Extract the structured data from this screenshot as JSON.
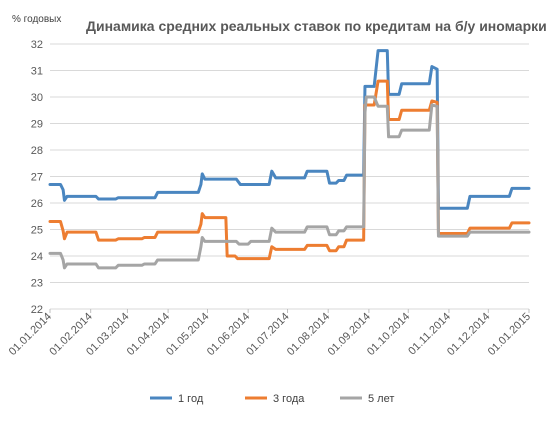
{
  "chart_data": {
    "type": "line",
    "title": "Динамика средних реальных ставок по кредитам на б/у иномарки",
    "ylabel": "% годовых",
    "xlabel": "",
    "ylim": [
      22,
      32
    ],
    "yticks": [
      22,
      23,
      24,
      25,
      26,
      27,
      28,
      29,
      30,
      31,
      32
    ],
    "xlim": [
      "01.01.2014",
      "01.01.2015"
    ],
    "xticks": [
      "01.01.2014",
      "01.02.2014",
      "01.03.2014",
      "01.04.2014",
      "01.05.2014",
      "01.06.2014",
      "01.07.2014",
      "01.08.2014",
      "01.09.2014",
      "01.10.2014",
      "01.11.2014",
      "01.12.2014",
      "01.01.2015"
    ],
    "grid": true,
    "legend": "bottom",
    "series": [
      {
        "name": "1 год",
        "color": "#4a86c0",
        "points": [
          [
            "01.01.2014",
            26.7
          ],
          [
            "09.01.2014",
            26.7
          ],
          [
            "11.01.2014",
            26.5
          ],
          [
            "12.01.2014",
            26.1
          ],
          [
            "14.01.2014",
            26.25
          ],
          [
            "05.02.2014",
            26.25
          ],
          [
            "07.02.2014",
            26.15
          ],
          [
            "20.02.2014",
            26.15
          ],
          [
            "22.02.2014",
            26.2
          ],
          [
            "22.03.2014",
            26.2
          ],
          [
            "24.03.2014",
            26.4
          ],
          [
            "24.04.2014",
            26.4
          ],
          [
            "26.04.2014",
            26.7
          ],
          [
            "27.04.2014",
            27.1
          ],
          [
            "29.04.2014",
            26.9
          ],
          [
            "23.05.2014",
            26.9
          ],
          [
            "26.05.2014",
            26.7
          ],
          [
            "06.06.2014",
            26.7
          ],
          [
            "10.06.2014",
            26.7
          ],
          [
            "17.06.2014",
            26.7
          ],
          [
            "19.06.2014",
            27.2
          ],
          [
            "22.06.2014",
            26.95
          ],
          [
            "14.07.2014",
            26.95
          ],
          [
            "16.07.2014",
            27.2
          ],
          [
            "31.07.2014",
            27.2
          ],
          [
            "02.08.2014",
            26.75
          ],
          [
            "07.08.2014",
            26.75
          ],
          [
            "09.08.2014",
            26.85
          ],
          [
            "13.08.2014",
            26.85
          ],
          [
            "15.08.2014",
            27.05
          ],
          [
            "28.08.2014",
            27.05
          ],
          [
            "29.08.2014",
            30.4
          ],
          [
            "05.09.2014",
            30.4
          ],
          [
            "08.09.2014",
            31.75
          ],
          [
            "15.09.2014",
            31.75
          ],
          [
            "16.09.2014",
            30.1
          ],
          [
            "24.09.2014",
            30.1
          ],
          [
            "26.09.2014",
            30.5
          ],
          [
            "01.10.2014",
            30.5
          ],
          [
            "17.10.2014",
            30.5
          ],
          [
            "19.10.2014",
            31.15
          ],
          [
            "23.10.2014",
            31.05
          ],
          [
            "24.10.2014",
            25.8
          ],
          [
            "15.11.2014",
            25.8
          ],
          [
            "17.11.2014",
            26.25
          ],
          [
            "17.12.2014",
            26.25
          ],
          [
            "19.12.2014",
            26.55
          ],
          [
            "01.01.2015",
            26.55
          ]
        ]
      },
      {
        "name": "3 года",
        "color": "#ed7d31",
        "points": [
          [
            "01.01.2014",
            25.3
          ],
          [
            "09.01.2014",
            25.3
          ],
          [
            "11.01.2014",
            24.95
          ],
          [
            "12.01.2014",
            24.65
          ],
          [
            "14.01.2014",
            24.9
          ],
          [
            "05.02.2014",
            24.9
          ],
          [
            "07.02.2014",
            24.6
          ],
          [
            "20.02.2014",
            24.6
          ],
          [
            "22.02.2014",
            24.65
          ],
          [
            "12.03.2014",
            24.65
          ],
          [
            "14.03.2014",
            24.7
          ],
          [
            "22.03.2014",
            24.7
          ],
          [
            "24.03.2014",
            24.9
          ],
          [
            "24.04.2014",
            24.9
          ],
          [
            "26.04.2014",
            25.2
          ],
          [
            "27.04.2014",
            25.6
          ],
          [
            "29.04.2014",
            25.45
          ],
          [
            "15.05.2014",
            25.45
          ],
          [
            "16.05.2014",
            24.0
          ],
          [
            "22.05.2014",
            24.0
          ],
          [
            "24.05.2014",
            23.9
          ],
          [
            "17.06.2014",
            23.9
          ],
          [
            "19.06.2014",
            24.35
          ],
          [
            "22.06.2014",
            24.25
          ],
          [
            "14.07.2014",
            24.25
          ],
          [
            "16.07.2014",
            24.4
          ],
          [
            "31.07.2014",
            24.4
          ],
          [
            "02.08.2014",
            24.2
          ],
          [
            "07.08.2014",
            24.2
          ],
          [
            "09.08.2014",
            24.35
          ],
          [
            "13.08.2014",
            24.35
          ],
          [
            "15.08.2014",
            24.6
          ],
          [
            "28.08.2014",
            24.6
          ],
          [
            "29.08.2014",
            29.7
          ],
          [
            "05.09.2014",
            29.7
          ],
          [
            "08.09.2014",
            30.6
          ],
          [
            "15.09.2014",
            30.6
          ],
          [
            "16.09.2014",
            29.15
          ],
          [
            "24.09.2014",
            29.15
          ],
          [
            "26.09.2014",
            29.5
          ],
          [
            "17.10.2014",
            29.5
          ],
          [
            "19.10.2014",
            29.85
          ],
          [
            "23.10.2014",
            29.8
          ],
          [
            "24.10.2014",
            24.85
          ],
          [
            "15.11.2014",
            24.85
          ],
          [
            "17.11.2014",
            25.05
          ],
          [
            "17.12.2014",
            25.05
          ],
          [
            "19.12.2014",
            25.25
          ],
          [
            "01.01.2015",
            25.25
          ]
        ]
      },
      {
        "name": "5 лет",
        "color": "#a5a5a5",
        "points": [
          [
            "01.01.2014",
            24.1
          ],
          [
            "09.01.2014",
            24.1
          ],
          [
            "11.01.2014",
            23.85
          ],
          [
            "12.01.2014",
            23.55
          ],
          [
            "14.01.2014",
            23.7
          ],
          [
            "05.02.2014",
            23.7
          ],
          [
            "07.02.2014",
            23.55
          ],
          [
            "20.02.2014",
            23.55
          ],
          [
            "22.02.2014",
            23.65
          ],
          [
            "12.03.2014",
            23.65
          ],
          [
            "14.03.2014",
            23.7
          ],
          [
            "22.03.2014",
            23.7
          ],
          [
            "24.03.2014",
            23.85
          ],
          [
            "24.04.2014",
            23.85
          ],
          [
            "26.04.2014",
            24.35
          ],
          [
            "27.04.2014",
            24.7
          ],
          [
            "29.04.2014",
            24.55
          ],
          [
            "23.05.2014",
            24.55
          ],
          [
            "25.05.2014",
            24.45
          ],
          [
            "01.06.2014",
            24.45
          ],
          [
            "03.06.2014",
            24.55
          ],
          [
            "17.06.2014",
            24.55
          ],
          [
            "19.06.2014",
            25.05
          ],
          [
            "22.06.2014",
            24.9
          ],
          [
            "14.07.2014",
            24.9
          ],
          [
            "16.07.2014",
            25.1
          ],
          [
            "31.07.2014",
            25.1
          ],
          [
            "02.08.2014",
            24.8
          ],
          [
            "07.08.2014",
            24.8
          ],
          [
            "09.08.2014",
            24.95
          ],
          [
            "13.08.2014",
            24.95
          ],
          [
            "15.08.2014",
            25.1
          ],
          [
            "28.08.2014",
            25.1
          ],
          [
            "29.08.2014",
            29.4
          ],
          [
            "30.08.2014",
            30.0
          ],
          [
            "05.09.2014",
            30.0
          ],
          [
            "08.09.2014",
            29.65
          ],
          [
            "15.09.2014",
            29.65
          ],
          [
            "16.09.2014",
            28.5
          ],
          [
            "24.09.2014",
            28.5
          ],
          [
            "26.09.2014",
            28.75
          ],
          [
            "17.10.2014",
            28.75
          ],
          [
            "19.10.2014",
            29.7
          ],
          [
            "23.10.2014",
            29.65
          ],
          [
            "24.10.2014",
            24.75
          ],
          [
            "15.11.2014",
            24.75
          ],
          [
            "17.11.2014",
            24.9
          ],
          [
            "01.01.2015",
            24.9
          ]
        ]
      }
    ]
  }
}
